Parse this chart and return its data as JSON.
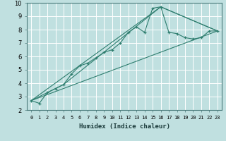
{
  "xlabel": "Humidex (Indice chaleur)",
  "bg_color": "#c0e0e0",
  "grid_color": "#ffffff",
  "line_color": "#2e7d6e",
  "xlim": [
    -0.5,
    23.5
  ],
  "ylim": [
    2,
    10
  ],
  "xticks": [
    0,
    1,
    2,
    3,
    4,
    5,
    6,
    7,
    8,
    9,
    10,
    11,
    12,
    13,
    14,
    15,
    16,
    17,
    18,
    19,
    20,
    21,
    22,
    23
  ],
  "yticks": [
    2,
    3,
    4,
    5,
    6,
    7,
    8,
    9,
    10
  ],
  "line1_x": [
    0,
    1,
    2,
    3,
    4,
    5,
    6,
    7,
    8,
    9,
    10,
    11,
    12,
    13,
    14,
    15,
    16,
    17,
    18,
    19,
    20,
    21,
    22,
    23
  ],
  "line1_y": [
    2.7,
    2.5,
    3.3,
    3.6,
    3.9,
    4.7,
    5.3,
    5.5,
    5.9,
    6.3,
    6.5,
    7.0,
    7.8,
    8.2,
    7.8,
    9.6,
    9.7,
    7.8,
    7.7,
    7.4,
    7.3,
    7.4,
    7.9,
    7.9
  ],
  "line2_x": [
    0,
    4,
    16,
    23
  ],
  "line2_y": [
    2.7,
    3.9,
    9.7,
    7.9
  ],
  "line3_x": [
    0,
    23
  ],
  "line3_y": [
    2.7,
    7.9
  ],
  "line4_x": [
    0,
    16,
    23
  ],
  "line4_y": [
    2.7,
    9.7,
    7.9
  ]
}
